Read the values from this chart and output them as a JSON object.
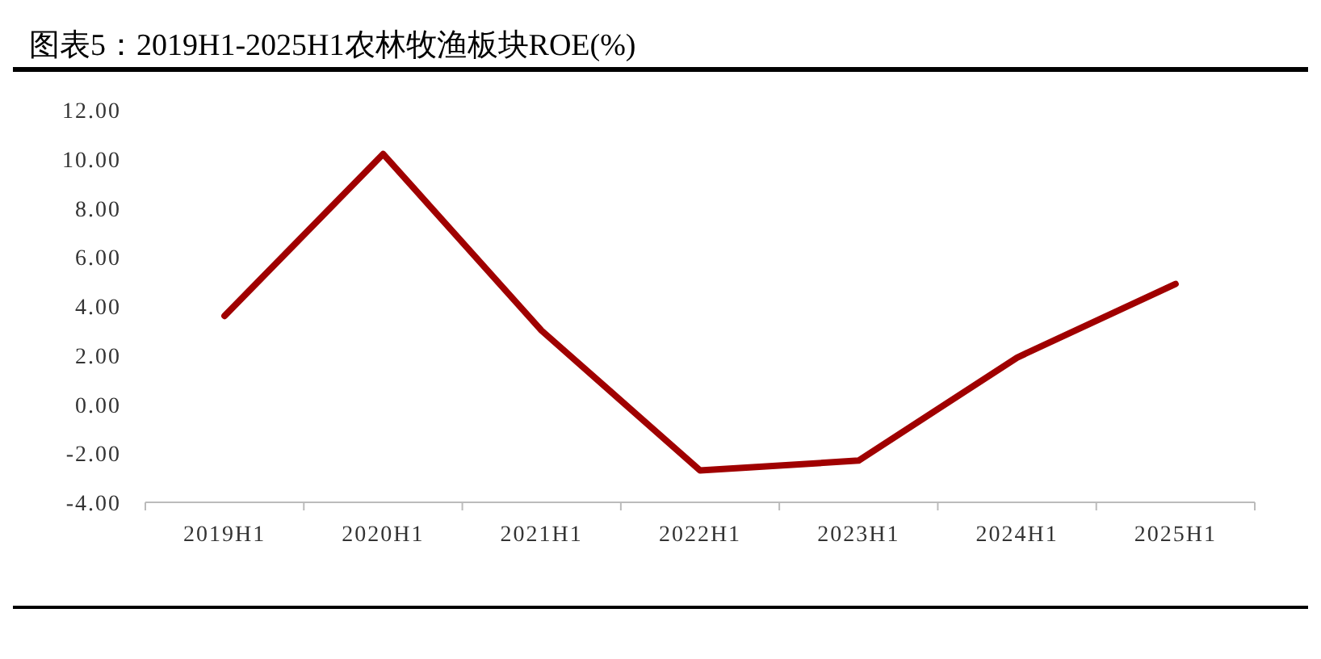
{
  "chart_data": {
    "type": "line",
    "title": "图表5：2019H1-2025H1农林牧渔板块ROE(%)",
    "categories": [
      "2019H1",
      "2020H1",
      "2021H1",
      "2022H1",
      "2023H1",
      "2024H1",
      "2025H1"
    ],
    "series": [
      {
        "color": "#a00000",
        "values": [
          3.6,
          10.2,
          3.0,
          -2.7,
          -2.3,
          1.9,
          4.9
        ]
      }
    ],
    "ylim": [
      -4,
      12
    ],
    "yticks": [
      {
        "value": -4,
        "label": "-4.00"
      },
      {
        "value": -2,
        "label": "-2.00"
      },
      {
        "value": 0,
        "label": "0.00"
      },
      {
        "value": 2,
        "label": "2.00"
      },
      {
        "value": 4,
        "label": "4.00"
      },
      {
        "value": 6,
        "label": "6.00"
      },
      {
        "value": 8,
        "label": "8.00"
      },
      {
        "value": 10,
        "label": "10.00"
      },
      {
        "value": 12,
        "label": "12.00"
      }
    ],
    "grid": false,
    "marker": "none",
    "line_style": "solid"
  }
}
